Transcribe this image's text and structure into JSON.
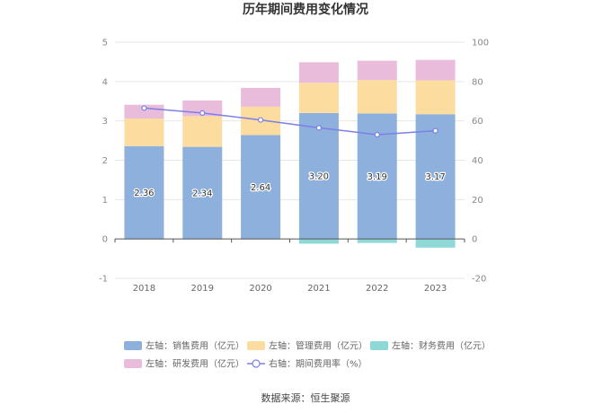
{
  "chart_data": {
    "type": "bar",
    "title": "历年期间费用变化情况",
    "categories": [
      "2018",
      "2019",
      "2020",
      "2021",
      "2022",
      "2023"
    ],
    "series": [
      {
        "name": "左轴：销售费用（亿元）",
        "axis": "left",
        "kind": "stacked-bar",
        "color": "#8eb0dc",
        "values": [
          2.36,
          2.34,
          2.64,
          3.2,
          3.19,
          3.17
        ]
      },
      {
        "name": "左轴：管理费用（亿元）",
        "axis": "left",
        "kind": "stacked-bar",
        "color": "#fddca0",
        "values": [
          0.7,
          0.78,
          0.72,
          0.77,
          0.85,
          0.86
        ]
      },
      {
        "name": "左轴：财务费用（亿元）",
        "axis": "left",
        "kind": "stacked-bar",
        "color": "#8ed8d8",
        "values": [
          -0.01,
          -0.01,
          -0.01,
          -0.12,
          -0.1,
          -0.22
        ]
      },
      {
        "name": "左轴：研发费用（亿元）",
        "axis": "left",
        "kind": "stacked-bar",
        "color": "#e9bcdb",
        "values": [
          0.35,
          0.4,
          0.48,
          0.52,
          0.49,
          0.52
        ]
      },
      {
        "name": "右轴：期间费用率（%）",
        "axis": "right",
        "kind": "line",
        "color": "#7b7fe6",
        "values": [
          66.5,
          64.0,
          60.5,
          56.5,
          53.0,
          55.0
        ]
      }
    ],
    "data_labels": [
      "2.36",
      "2.34",
      "2.64",
      "3.20",
      "3.19",
      "3.17"
    ],
    "left_axis": {
      "min": -1,
      "max": 5,
      "ticks": [
        "-1",
        "0",
        "1",
        "2",
        "3",
        "4",
        "5"
      ]
    },
    "right_axis": {
      "min": -20,
      "max": 100,
      "ticks": [
        "-20",
        "0",
        "20",
        "40",
        "60",
        "80",
        "100"
      ]
    },
    "grid": true,
    "legend_position": "bottom"
  },
  "source_label": "数据来源：恒生聚源"
}
